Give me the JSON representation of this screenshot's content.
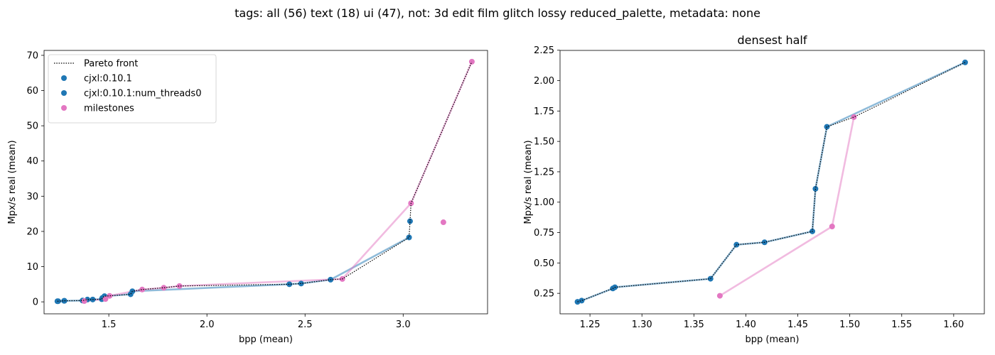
{
  "suptitle": "tags: all (56) text (18) ui (47), not: 3d edit film glitch lossy reduced_palette, metadata: none",
  "colors": {
    "cjxl": "#1f77b4",
    "milestones": "#e377c2",
    "pareto": "#000000"
  },
  "chart_data": [
    {
      "type": "scatter",
      "title": "",
      "xlabel": "bpp (mean)",
      "ylabel": "Mpx/s real (mean)",
      "xlim": [
        1.17,
        3.43
      ],
      "ylim": [
        -3.4,
        71.4
      ],
      "xticks": [
        1.5,
        2.0,
        2.5,
        3.0
      ],
      "xtick_labels": [
        "1.5",
        "2.0",
        "2.5",
        "3.0"
      ],
      "yticks": [
        0,
        10,
        20,
        30,
        40,
        50,
        60,
        70
      ],
      "ytick_labels": [
        "0",
        "10",
        "20",
        "30",
        "40",
        "50",
        "60",
        "70"
      ],
      "legend": {
        "placement": "upper-left",
        "entries": [
          "Pareto front",
          "cjxl:0.10.1",
          "cjxl:0.10.1:num_threads0",
          "milestones"
        ]
      },
      "series": [
        {
          "name": "cjxl:0.10.1",
          "kind": "points",
          "color": "#1f77b4",
          "x": [
            1.238,
            1.242,
            1.272,
            1.274,
            1.366,
            1.391,
            1.418,
            1.464,
            1.467,
            1.478,
            1.611,
            1.62,
            2.42,
            2.48,
            2.63,
            3.03,
            3.035
          ],
          "y": [
            0.18,
            0.19,
            0.29,
            0.3,
            0.37,
            0.65,
            0.67,
            0.76,
            1.11,
            1.62,
            2.15,
            3.0,
            5.0,
            5.2,
            6.3,
            18.3,
            22.9
          ]
        },
        {
          "name": "cjxl:0.10.1:num_threads0",
          "kind": "points",
          "color": "#1f77b4",
          "x": [],
          "y": []
        },
        {
          "name": "cjxl:0.10.1 (line)",
          "kind": "line",
          "color": "#1f77b4",
          "x": [
            1.238,
            1.242,
            1.272,
            1.274,
            1.366,
            1.391,
            1.418,
            1.464,
            1.467,
            1.478,
            1.611,
            1.62,
            2.42,
            2.48,
            2.63,
            3.03
          ],
          "y": [
            0.18,
            0.19,
            0.29,
            0.3,
            0.37,
            0.65,
            0.67,
            0.76,
            1.11,
            1.62,
            2.15,
            3.0,
            5.0,
            5.2,
            6.3,
            18.3
          ]
        },
        {
          "name": "milestones",
          "kind": "points",
          "color": "#e377c2",
          "x": [
            1.375,
            1.483,
            1.504,
            1.67,
            1.78,
            1.86,
            2.69,
            3.04,
            3.205,
            3.35
          ],
          "y": [
            0.23,
            0.8,
            1.7,
            3.5,
            4.0,
            4.5,
            6.5,
            28.0,
            22.6,
            68.2
          ]
        },
        {
          "name": "milestones (line)",
          "kind": "line",
          "color": "#e377c2",
          "x": [
            1.375,
            1.483,
            1.504,
            1.67,
            1.78,
            1.86,
            2.69,
            3.04,
            3.35
          ],
          "y": [
            0.23,
            0.8,
            1.7,
            3.5,
            4.0,
            4.5,
            6.5,
            28.0,
            68.2
          ]
        },
        {
          "name": "Pareto front",
          "kind": "front",
          "color": "#000000",
          "x": [
            1.238,
            1.242,
            1.272,
            1.274,
            1.366,
            1.391,
            1.418,
            1.464,
            1.467,
            1.478,
            1.504,
            1.611,
            1.62,
            1.67,
            1.78,
            1.86,
            2.42,
            2.48,
            2.63,
            2.69,
            3.03,
            3.035,
            3.04,
            3.35
          ],
          "y": [
            0.18,
            0.19,
            0.29,
            0.3,
            0.37,
            0.65,
            0.67,
            0.76,
            1.11,
            1.62,
            1.7,
            2.15,
            3.0,
            3.5,
            4.0,
            4.5,
            5.0,
            5.2,
            6.3,
            6.5,
            18.3,
            22.9,
            28.0,
            68.2
          ]
        }
      ]
    },
    {
      "type": "scatter",
      "title": "densest half",
      "xlabel": "bpp (mean)",
      "ylabel": "Mpx/s real (mean)",
      "xlim": [
        1.2212,
        1.6295
      ],
      "ylim": [
        0.0815,
        2.2485
      ],
      "xticks": [
        1.25,
        1.3,
        1.35,
        1.4,
        1.45,
        1.5,
        1.55,
        1.6
      ],
      "xtick_labels": [
        "1.25",
        "1.30",
        "1.35",
        "1.40",
        "1.45",
        "1.50",
        "1.55",
        "1.60"
      ],
      "yticks": [
        0.25,
        0.5,
        0.75,
        1.0,
        1.25,
        1.5,
        1.75,
        2.0,
        2.25
      ],
      "ytick_labels": [
        "0.25",
        "0.50",
        "0.75",
        "1.00",
        "1.25",
        "1.50",
        "1.75",
        "2.00",
        "2.25"
      ],
      "series": [
        {
          "name": "cjxl:0.10.1",
          "kind": "points",
          "color": "#1f77b4",
          "x": [
            1.238,
            1.242,
            1.272,
            1.274,
            1.366,
            1.391,
            1.418,
            1.464,
            1.467,
            1.478,
            1.611
          ],
          "y": [
            0.18,
            0.19,
            0.29,
            0.3,
            0.37,
            0.65,
            0.67,
            0.76,
            1.11,
            1.62,
            2.15
          ]
        },
        {
          "name": "cjxl:0.10.1 (line)",
          "kind": "line",
          "color": "#1f77b4",
          "x": [
            1.238,
            1.242,
            1.272,
            1.274,
            1.366,
            1.391,
            1.418,
            1.464,
            1.467,
            1.478,
            1.611
          ],
          "y": [
            0.18,
            0.19,
            0.29,
            0.3,
            0.37,
            0.65,
            0.67,
            0.76,
            1.11,
            1.62,
            2.15
          ]
        },
        {
          "name": "milestones",
          "kind": "points",
          "color": "#e377c2",
          "x": [
            1.375,
            1.483,
            1.504
          ],
          "y": [
            0.23,
            0.8,
            1.7
          ]
        },
        {
          "name": "milestones (line)",
          "kind": "line",
          "color": "#e377c2",
          "x": [
            1.375,
            1.483,
            1.504
          ],
          "y": [
            0.23,
            0.8,
            1.7
          ]
        },
        {
          "name": "Pareto front",
          "kind": "front",
          "color": "#000000",
          "x": [
            1.238,
            1.242,
            1.272,
            1.274,
            1.366,
            1.391,
            1.418,
            1.464,
            1.467,
            1.478,
            1.504,
            1.611
          ],
          "y": [
            0.18,
            0.19,
            0.29,
            0.3,
            0.37,
            0.65,
            0.67,
            0.76,
            1.11,
            1.62,
            1.7,
            2.15
          ]
        }
      ]
    }
  ]
}
